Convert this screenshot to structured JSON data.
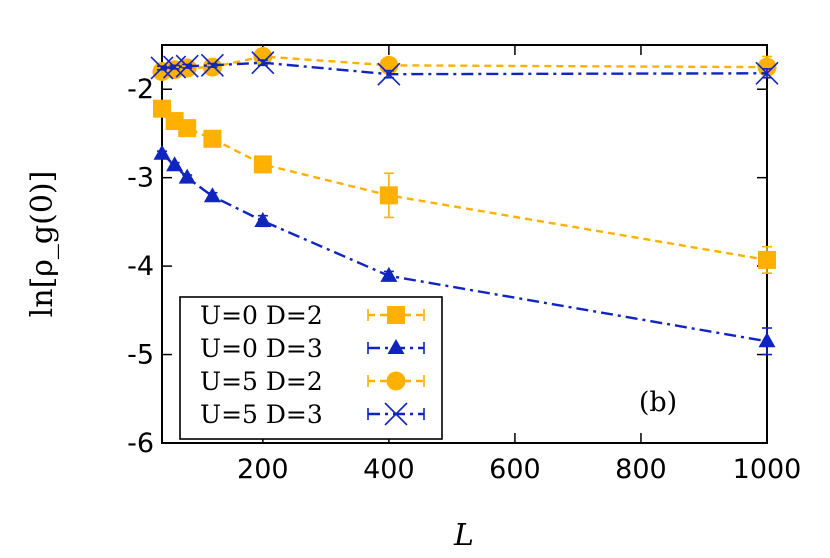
{
  "chart_data": {
    "type": "line",
    "xlabel": "L",
    "ylabel": "ln[ρ_g(0)]",
    "xlim": [
      40,
      1000
    ],
    "ylim": [
      -6,
      -1.5
    ],
    "xticks": [
      200,
      400,
      600,
      800,
      1000
    ],
    "yticks": [
      -6,
      -5,
      -4,
      -3,
      -2
    ],
    "annotation": "(b)",
    "legend_position": "bottom-left",
    "series": [
      {
        "name": "U=0 D=2",
        "color": "#ffb000",
        "marker": "square",
        "dash": "dashed",
        "x": [
          40,
          60,
          80,
          120,
          200,
          400,
          1000
        ],
        "y": [
          -2.22,
          -2.36,
          -2.44,
          -2.56,
          -2.85,
          -3.2,
          -3.93
        ],
        "err": [
          0.03,
          0.03,
          0.03,
          0.03,
          0.04,
          0.25,
          0.15
        ]
      },
      {
        "name": "U=0 D=3",
        "color": "#1024c0",
        "marker": "triangle",
        "dash": "dashdot",
        "x": [
          40,
          60,
          80,
          120,
          200,
          400,
          1000
        ],
        "y": [
          -2.73,
          -2.86,
          -3.0,
          -3.21,
          -3.49,
          -4.11,
          -4.85
        ],
        "err": [
          0.03,
          0.03,
          0.03,
          0.04,
          0.06,
          0.05,
          0.15
        ]
      },
      {
        "name": "U=5 D=2",
        "color": "#ffb000",
        "marker": "circle",
        "dash": "dashed",
        "x": [
          40,
          60,
          80,
          120,
          200,
          400,
          1000
        ],
        "y": [
          -1.8,
          -1.78,
          -1.76,
          -1.75,
          -1.63,
          -1.73,
          -1.75
        ],
        "err": [
          0.02,
          0.02,
          0.02,
          0.02,
          0.04,
          0.06,
          0.12
        ]
      },
      {
        "name": "U=5 D=3",
        "color": "#1024c0",
        "marker": "cross",
        "dash": "dashdot",
        "x": [
          40,
          60,
          80,
          120,
          200,
          400,
          1000
        ],
        "y": [
          -1.76,
          -1.75,
          -1.74,
          -1.73,
          -1.7,
          -1.83,
          -1.82
        ],
        "err": [
          0.02,
          0.02,
          0.02,
          0.02,
          0.03,
          0.04,
          0.05
        ]
      }
    ]
  }
}
